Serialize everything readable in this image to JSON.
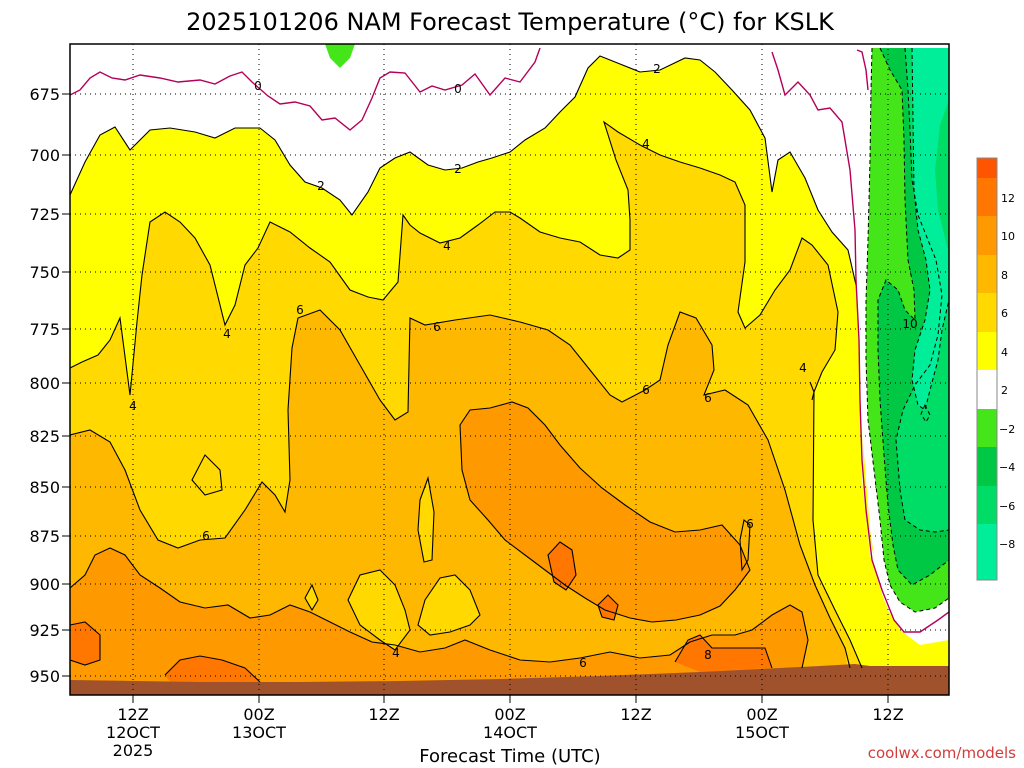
{
  "chart_data": {
    "type": "heatmap",
    "title": "2025101206 NAM Forecast Temperature (°C) for KSLK",
    "xlabel": "Forecast Time (UTC)",
    "ylabel": "",
    "y_scale": "pressure (hPa), decreasing upward",
    "ylim": [
      960,
      653
    ],
    "y_ticks": [
      "675",
      "700",
      "725",
      "750",
      "775",
      "800",
      "825",
      "850",
      "875",
      "900",
      "925",
      "950"
    ],
    "x_ticks": [
      {
        "lines": [
          "12Z",
          "12OCT",
          "2025"
        ]
      },
      {
        "lines": [
          "00Z",
          "13OCT"
        ]
      },
      {
        "lines": [
          "12Z"
        ]
      },
      {
        "lines": [
          "00Z",
          "14OCT"
        ]
      },
      {
        "lines": [
          "12Z"
        ]
      },
      {
        "lines": [
          "00Z",
          "15OCT"
        ]
      },
      {
        "lines": [
          "12Z"
        ]
      }
    ],
    "grid": true,
    "colorbar": {
      "position": "right",
      "levels": [
        -10,
        -8,
        -6,
        -4,
        -2,
        2,
        4,
        6,
        8,
        10,
        12,
        14
      ],
      "labels": [
        "−8",
        "−6",
        "−4",
        "−2",
        "2",
        "4",
        "6",
        "8",
        "10",
        "12"
      ],
      "colors": [
        "#00ee99",
        "#00dd66",
        "#00c844",
        "#44e61a",
        "#ffffff",
        "#ffff00",
        "#ffd900",
        "#ffb800",
        "#ff9900",
        "#ff7700",
        "#ff5500"
      ]
    },
    "contour_labels": [
      "0",
      "0",
      "2",
      "2",
      "2",
      "4",
      "4",
      "4",
      "4",
      "4",
      "4",
      "6",
      "6",
      "6",
      "6",
      "6",
      "6",
      "6",
      "8",
      "10",
      "−4"
    ],
    "colors": {
      "zero_line": "#b4005a",
      "ground": "#a0522d",
      "frame": "#000000"
    }
  },
  "credit": "coolwx.com/models"
}
